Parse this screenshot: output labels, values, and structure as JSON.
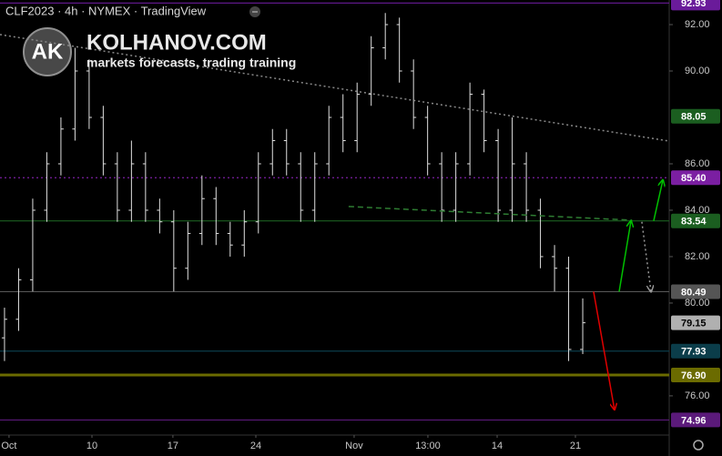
{
  "chart_data": {
    "type": "ohlc",
    "title": "CLF2023 · 4h · NYMEX · TradingView",
    "watermark": {
      "logo": "AK",
      "name": "KOLHANOV.COM",
      "tagline": "markets forecasts, trading training"
    },
    "x": [
      0,
      1,
      2,
      3,
      4,
      5,
      6,
      7,
      8,
      9,
      10,
      11,
      12,
      13,
      14,
      15,
      16,
      17,
      18,
      19,
      20,
      21,
      22,
      23,
      24,
      25,
      26,
      27,
      28,
      29,
      30,
      31,
      32,
      33,
      34,
      35,
      36,
      37,
      38,
      39,
      40,
      41
    ],
    "ohlc": [
      [
        78.5,
        79.8,
        77.5,
        79.3
      ],
      [
        79.3,
        81.5,
        78.8,
        81
      ],
      [
        81,
        84.5,
        80.5,
        84
      ],
      [
        84,
        86.5,
        83.5,
        86
      ],
      [
        86,
        88,
        85.5,
        87.5
      ],
      [
        87.5,
        91,
        87,
        90
      ],
      [
        90,
        90.5,
        87.5,
        88
      ],
      [
        88,
        88.5,
        85.5,
        86
      ],
      [
        86,
        86.5,
        83.5,
        84
      ],
      [
        84,
        87,
        83.5,
        86
      ],
      [
        86,
        86.5,
        83.5,
        84
      ],
      [
        84,
        84.5,
        83,
        83.5
      ],
      [
        83.5,
        84,
        80.5,
        81.5
      ],
      [
        81.5,
        83.5,
        81,
        83
      ],
      [
        83,
        85.5,
        82.5,
        84.5
      ],
      [
        84.5,
        85,
        82.5,
        83
      ],
      [
        83,
        83.5,
        82,
        82.5
      ],
      [
        82.5,
        84,
        82,
        83.5
      ],
      [
        83.5,
        86.5,
        83,
        86
      ],
      [
        86,
        87.5,
        85.5,
        87
      ],
      [
        87,
        87.5,
        85.5,
        86
      ],
      [
        86,
        86.5,
        83.5,
        84
      ],
      [
        84,
        86.5,
        83.5,
        86
      ],
      [
        86,
        88.5,
        85.5,
        88
      ],
      [
        88,
        89,
        86.5,
        87
      ],
      [
        87,
        89.5,
        86.5,
        89
      ],
      [
        89,
        91.5,
        88.5,
        91
      ],
      [
        91,
        92.5,
        90.5,
        92
      ],
      [
        92,
        92.3,
        89.5,
        90
      ],
      [
        90,
        90.5,
        87.5,
        88
      ],
      [
        88,
        88.5,
        85.5,
        86
      ],
      [
        86,
        86.5,
        83.5,
        84
      ],
      [
        84,
        86.5,
        83.5,
        86
      ],
      [
        86,
        89.5,
        85.5,
        89
      ],
      [
        89,
        89.2,
        86.5,
        87
      ],
      [
        87,
        87.5,
        83.5,
        84
      ],
      [
        84,
        88,
        83.5,
        86
      ],
      [
        86,
        86.5,
        83.5,
        84
      ],
      [
        84,
        84.5,
        81.5,
        82
      ],
      [
        82,
        82.5,
        80.5,
        81.5
      ],
      [
        81.5,
        82,
        77.5,
        78
      ],
      [
        78,
        80.2,
        77.8,
        79.15
      ]
    ],
    "bar_color": "#e0e0e0",
    "xlim": [
      -0.32,
      47.13
    ],
    "xticks": [
      {
        "value": 0.32,
        "label": "Oct"
      },
      {
        "value": 6.2,
        "label": "10"
      },
      {
        "value": 11.94,
        "label": "17"
      },
      {
        "value": 17.82,
        "label": "24"
      },
      {
        "value": 24.79,
        "label": "Nov"
      },
      {
        "value": 30.02,
        "label": "13:00"
      },
      {
        "value": 34.93,
        "label": "14"
      },
      {
        "value": 40.48,
        "label": "21"
      }
    ],
    "ylim": [
      74.31,
      93.06
    ],
    "yticks": [
      {
        "value": 76,
        "label": "76.00"
      },
      {
        "value": 80,
        "label": "80.00"
      },
      {
        "value": 82,
        "label": "82.00"
      },
      {
        "value": 84,
        "label": "84.00"
      },
      {
        "value": 86,
        "label": "86.00"
      },
      {
        "value": 90,
        "label": "90.00"
      },
      {
        "value": 92,
        "label": "92.00"
      }
    ],
    "levels": [
      {
        "value": 92.93,
        "label": "92.93",
        "color": "#6a1b9a",
        "style": "solid",
        "line": true
      },
      {
        "value": 88.05,
        "label": "88.05",
        "color": "#1b5e20",
        "style": "none",
        "line": false
      },
      {
        "value": 85.4,
        "label": "85.40",
        "color": "#7b1fa2",
        "style": "dotted",
        "line": true
      },
      {
        "value": 83.54,
        "label": "83.54",
        "color": "#1b5e20",
        "style": "solid",
        "line": true
      },
      {
        "value": 80.49,
        "label": "80.49",
        "color": "#555555",
        "style": "solid",
        "line": true
      },
      {
        "value": 79.15,
        "label": "79.15",
        "color": "#b0b0b0",
        "style": "none",
        "line": false
      },
      {
        "value": 77.93,
        "label": "77.93",
        "color": "#0b3d4a",
        "style": "solid",
        "line": true
      },
      {
        "value": 76.9,
        "label": "76.90",
        "color": "#6b6b00",
        "style": "thick",
        "line": true
      },
      {
        "value": 74.96,
        "label": "74.96",
        "color": "#5b1a7a",
        "style": "solid",
        "line": true
      }
    ],
    "drawings": [
      {
        "x": [
          -0.32,
          47.13
        ],
        "y": [
          91.57,
          86.98
        ],
        "color": "#888888",
        "style": "dotted",
        "arrow": false
      },
      {
        "x": [
          24.4,
          44.5
        ],
        "y": [
          84.16,
          83.57
        ],
        "color": "#2e7d32",
        "style": "dashed",
        "arrow": false
      },
      {
        "x": [
          41.77,
          43.25
        ],
        "y": [
          80.49,
          75.41
        ],
        "color": "#e00000",
        "style": "solid",
        "arrow": true
      },
      {
        "x": [
          43.58,
          44.42
        ],
        "y": [
          80.49,
          83.54
        ],
        "color": "#00c000",
        "style": "solid",
        "arrow": true
      },
      {
        "x": [
          46.03,
          46.68
        ],
        "y": [
          83.54,
          85.3
        ],
        "color": "#00c000",
        "style": "solid",
        "arrow": true
      },
      {
        "x": [
          45.19,
          45.84
        ],
        "y": [
          83.5,
          80.49
        ],
        "color": "#999999",
        "style": "dotted",
        "arrow": true
      }
    ]
  }
}
